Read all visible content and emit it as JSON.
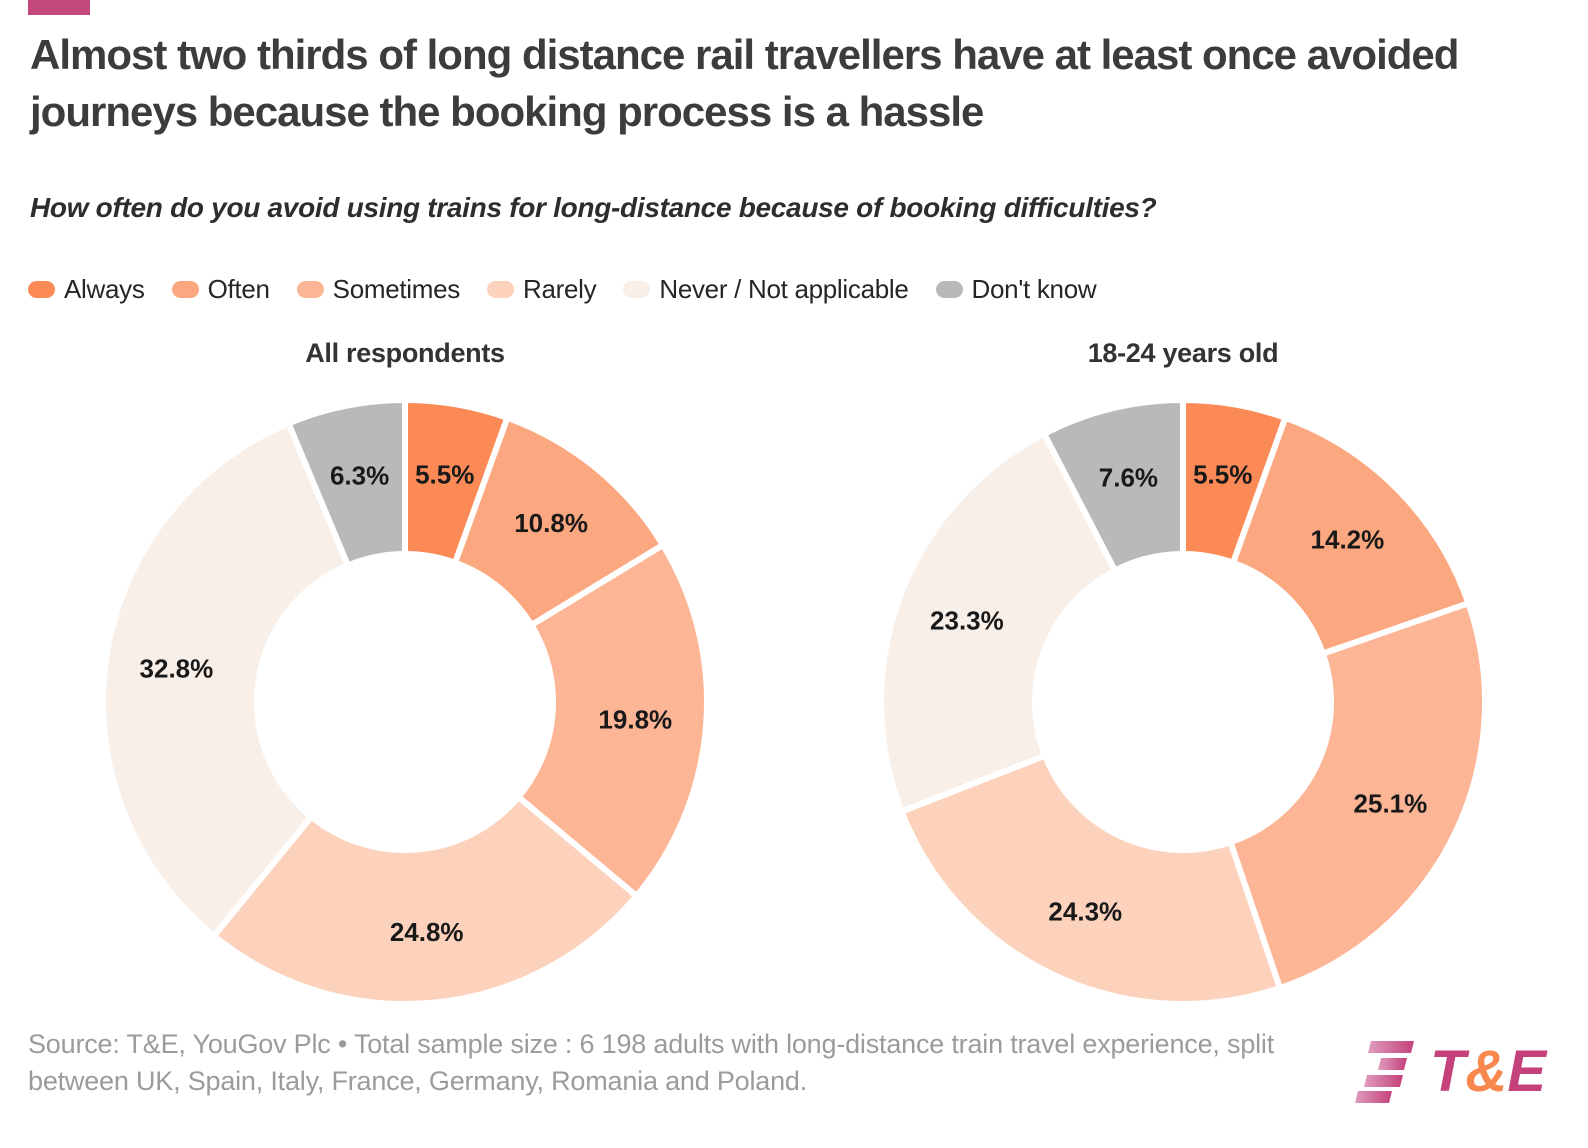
{
  "accent": {
    "bar_color": "#c4487b"
  },
  "header": {
    "title": "Almost two thirds of long distance rail travellers have at least once avoided journeys because the booking process is a hassle",
    "subtitle": "How often do you avoid using trains for long-distance because of booking difficulties?"
  },
  "legend": {
    "position": "top",
    "items": [
      {
        "label": "Always",
        "color": "#fb8a56"
      },
      {
        "label": "Often",
        "color": "#fba77f"
      },
      {
        "label": "Sometimes",
        "color": "#fcb595"
      },
      {
        "label": "Rarely",
        "color": "#fdd2bc"
      },
      {
        "label": "Never / Not applicable",
        "color": "#f8efe9"
      },
      {
        "label": "Don't know",
        "color": "#b9b9b9"
      }
    ]
  },
  "chart_data": [
    {
      "type": "pie",
      "donut": true,
      "title": "All respondents",
      "categories": [
        "Always",
        "Often",
        "Sometimes",
        "Rarely",
        "Never / Not applicable",
        "Don't know"
      ],
      "values": [
        5.5,
        10.8,
        19.8,
        24.8,
        32.8,
        6.3
      ],
      "labels": [
        "5.5%",
        "10.8%",
        "19.8%",
        "24.8%",
        "32.8%",
        "6.3%"
      ],
      "colors": [
        "#fb8a56",
        "#fba77f",
        "#fcb595",
        "#fdd2bc",
        "#f8efe9",
        "#b9b9b9"
      ],
      "start_angle_deg": 0,
      "direction": "clockwise",
      "inner_radius_ratio": 0.49,
      "label_color": "#191919"
    },
    {
      "type": "pie",
      "donut": true,
      "title": "18-24 years old",
      "categories": [
        "Always",
        "Often",
        "Sometimes",
        "Rarely",
        "Never / Not applicable",
        "Don't know"
      ],
      "values": [
        5.5,
        14.2,
        25.1,
        24.3,
        23.3,
        7.6
      ],
      "labels": [
        "5.5%",
        "14.2%",
        "25.1%",
        "24.3%",
        "23.3%",
        "7.6%"
      ],
      "colors": [
        "#fb8a56",
        "#fba77f",
        "#fcb595",
        "#fdd2bc",
        "#f8efe9",
        "#b9b9b9"
      ],
      "start_angle_deg": 0,
      "direction": "clockwise",
      "inner_radius_ratio": 0.49,
      "label_color": "#191919"
    }
  ],
  "footer": {
    "source": "Source: T&E, YouGov Plc • Total sample size : 6 198 adults with long-distance train travel experience, split between UK, Spain, Italy, France, Germany, Romania and Poland.",
    "logo": {
      "t": "T",
      "amp": "&",
      "e": "E",
      "text_color": "#c4417b",
      "amp_color": "#f9884f",
      "stripes_color_from": "#e09cbe",
      "stripes_color_to": "#c4417b"
    }
  }
}
